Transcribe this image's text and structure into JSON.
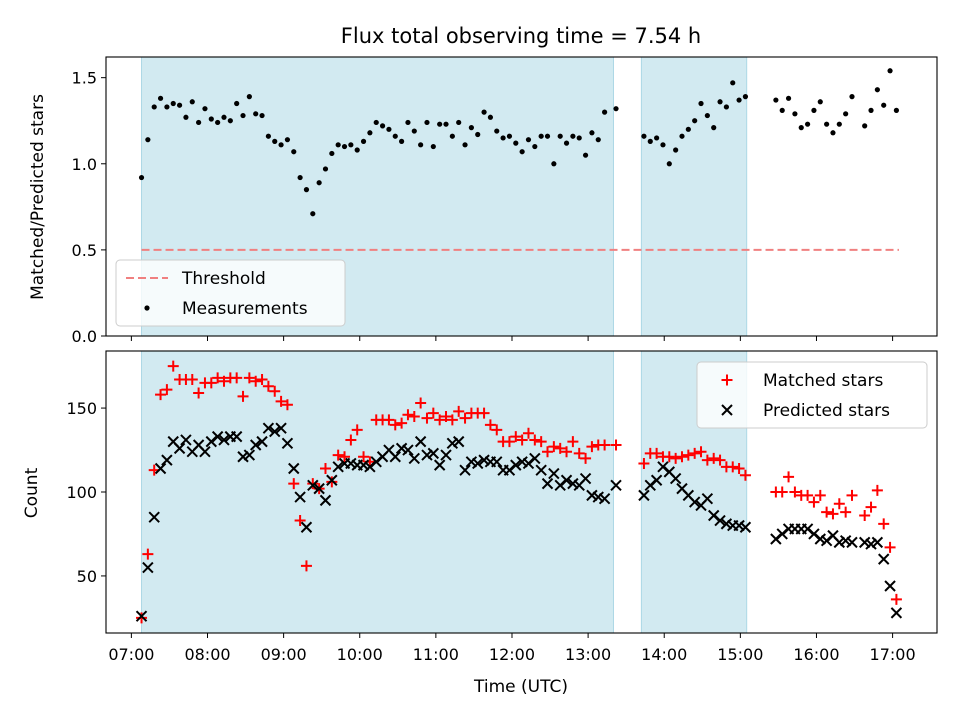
{
  "chart_data": [
    {
      "type": "scatter",
      "title": "Flux total observing time = 7.54 h",
      "xlabel": "",
      "ylabel": "Matched/Predicted stars",
      "xlim": [
        "06:40",
        "17:35"
      ],
      "ylim": [
        0.0,
        1.62
      ],
      "yticks": [
        0.0,
        0.5,
        1.0,
        1.5
      ],
      "ytick_labels": [
        "0.0",
        "0.5",
        "1.0",
        "1.5"
      ],
      "shaded_intervals": [
        [
          "07:08",
          "13:20"
        ],
        [
          "13:42",
          "15:05"
        ]
      ],
      "shade_color": "#add8e6",
      "threshold": {
        "name": "Threshold",
        "value": 0.5,
        "x": [
          "07:08",
          "17:05"
        ],
        "color": "#f08080",
        "style": "dashed"
      },
      "legend": {
        "position": "lower-left",
        "entries": [
          "Threshold",
          "Measurements"
        ]
      },
      "series": [
        {
          "name": "Measurements",
          "color": "#000000",
          "marker": "dot",
          "x": [
            "07:08",
            "07:13",
            "07:18",
            "07:23",
            "07:28",
            "07:33",
            "07:38",
            "07:43",
            "07:48",
            "07:53",
            "07:58",
            "08:03",
            "08:08",
            "08:13",
            "08:18",
            "08:23",
            "08:28",
            "08:33",
            "08:38",
            "08:43",
            "08:48",
            "08:53",
            "08:58",
            "09:03",
            "09:08",
            "09:13",
            "09:18",
            "09:23",
            "09:28",
            "09:33",
            "09:38",
            "09:43",
            "09:48",
            "09:53",
            "09:58",
            "10:03",
            "10:08",
            "10:13",
            "10:18",
            "10:23",
            "10:28",
            "10:33",
            "10:38",
            "10:43",
            "10:48",
            "10:53",
            "10:58",
            "11:03",
            "11:08",
            "11:13",
            "11:18",
            "11:23",
            "11:28",
            "11:33",
            "11:38",
            "11:43",
            "11:48",
            "11:53",
            "11:58",
            "12:03",
            "12:08",
            "12:13",
            "12:18",
            "12:23",
            "12:28",
            "12:33",
            "12:38",
            "12:43",
            "12:48",
            "12:53",
            "12:58",
            "13:03",
            "13:08",
            "13:13",
            "13:22",
            "13:44",
            "13:49",
            "13:54",
            "13:59",
            "14:04",
            "14:09",
            "14:14",
            "14:19",
            "14:24",
            "14:29",
            "14:34",
            "14:39",
            "14:44",
            "14:49",
            "14:54",
            "14:59",
            "15:04",
            "15:28",
            "15:33",
            "15:38",
            "15:43",
            "15:48",
            "15:53",
            "15:58",
            "16:03",
            "16:08",
            "16:13",
            "16:18",
            "16:23",
            "16:28",
            "16:38",
            "16:43",
            "16:48",
            "16:53",
            "16:58",
            "17:03"
          ],
          "y": [
            0.92,
            1.14,
            1.33,
            1.38,
            1.33,
            1.35,
            1.34,
            1.27,
            1.36,
            1.24,
            1.32,
            1.26,
            1.24,
            1.27,
            1.25,
            1.35,
            1.28,
            1.39,
            1.29,
            1.28,
            1.16,
            1.13,
            1.11,
            1.14,
            1.07,
            0.92,
            0.85,
            0.71,
            0.89,
            0.97,
            1.06,
            1.11,
            1.1,
            1.11,
            1.08,
            1.13,
            1.18,
            1.24,
            1.22,
            1.2,
            1.16,
            1.13,
            1.24,
            1.19,
            1.11,
            1.24,
            1.1,
            1.23,
            1.23,
            1.16,
            1.24,
            1.11,
            1.21,
            1.17,
            1.3,
            1.27,
            1.19,
            1.15,
            1.16,
            1.12,
            1.07,
            1.14,
            1.1,
            1.16,
            1.16,
            1.0,
            1.16,
            1.12,
            1.16,
            1.15,
            1.05,
            1.18,
            1.14,
            1.3,
            1.32,
            1.16,
            1.13,
            1.15,
            1.11,
            1.0,
            1.08,
            1.16,
            1.2,
            1.25,
            1.35,
            1.28,
            1.21,
            1.36,
            1.33,
            1.47,
            1.37,
            1.39,
            1.37,
            1.31,
            1.38,
            1.29,
            1.21,
            1.23,
            1.31,
            1.36,
            1.23,
            1.18,
            1.23,
            1.29,
            1.39,
            1.22,
            1.31,
            1.43,
            1.34,
            1.54,
            1.31
          ]
        }
      ]
    },
    {
      "type": "scatter",
      "title": "",
      "xlabel": "Time (UTC)",
      "ylabel": "Count",
      "xlim": [
        "06:40",
        "17:35"
      ],
      "xticks": [
        "07:00",
        "08:00",
        "09:00",
        "10:00",
        "11:00",
        "12:00",
        "13:00",
        "14:00",
        "15:00",
        "16:00",
        "17:00"
      ],
      "ylim": [
        16,
        184
      ],
      "yticks": [
        50,
        100,
        150
      ],
      "ytick_labels": [
        "50",
        "100",
        "150"
      ],
      "shaded_intervals": [
        [
          "07:08",
          "13:20"
        ],
        [
          "13:42",
          "15:05"
        ]
      ],
      "shade_color": "#add8e6",
      "legend": {
        "position": "top-right",
        "entries": [
          "Matched stars",
          "Predicted stars"
        ]
      },
      "series": [
        {
          "name": "Matched stars",
          "color": "#ff0000",
          "marker": "plus",
          "x": [
            "07:08",
            "07:13",
            "07:18",
            "07:23",
            "07:28",
            "07:33",
            "07:38",
            "07:43",
            "07:48",
            "07:53",
            "07:58",
            "08:03",
            "08:08",
            "08:13",
            "08:18",
            "08:23",
            "08:28",
            "08:33",
            "08:38",
            "08:43",
            "08:48",
            "08:53",
            "08:58",
            "09:03",
            "09:08",
            "09:13",
            "09:18",
            "09:23",
            "09:28",
            "09:33",
            "09:38",
            "09:43",
            "09:48",
            "09:53",
            "09:58",
            "10:03",
            "10:08",
            "10:13",
            "10:18",
            "10:23",
            "10:28",
            "10:33",
            "10:38",
            "10:43",
            "10:48",
            "10:53",
            "10:58",
            "11:03",
            "11:08",
            "11:13",
            "11:18",
            "11:23",
            "11:28",
            "11:33",
            "11:38",
            "11:43",
            "11:48",
            "11:53",
            "11:58",
            "12:03",
            "12:08",
            "12:13",
            "12:18",
            "12:23",
            "12:28",
            "12:33",
            "12:38",
            "12:43",
            "12:48",
            "12:53",
            "12:58",
            "13:03",
            "13:08",
            "13:13",
            "13:22",
            "13:44",
            "13:49",
            "13:54",
            "13:59",
            "14:04",
            "14:09",
            "14:14",
            "14:19",
            "14:24",
            "14:29",
            "14:34",
            "14:39",
            "14:44",
            "14:49",
            "14:54",
            "14:59",
            "15:04",
            "15:28",
            "15:33",
            "15:38",
            "15:43",
            "15:48",
            "15:53",
            "15:58",
            "16:03",
            "16:08",
            "16:13",
            "16:18",
            "16:23",
            "16:28",
            "16:38",
            "16:43",
            "16:48",
            "16:53",
            "16:58",
            "17:03"
          ],
          "y": [
            25,
            63,
            113,
            158,
            161,
            175,
            167,
            167,
            167,
            159,
            165,
            165,
            168,
            166,
            168,
            168,
            157,
            168,
            166,
            167,
            163,
            160,
            154,
            152,
            105,
            83,
            56,
            105,
            102,
            114,
            106,
            122,
            121,
            131,
            137,
            121,
            118,
            143,
            143,
            143,
            140,
            141,
            146,
            145,
            153,
            144,
            147,
            143,
            145,
            143,
            148,
            144,
            147,
            147,
            147,
            140,
            137,
            130,
            130,
            133,
            131,
            135,
            131,
            130,
            124,
            127,
            126,
            124,
            130,
            123,
            120,
            127,
            128,
            128,
            128,
            117,
            123,
            123,
            121,
            121,
            120,
            121,
            122,
            123,
            124,
            119,
            120,
            119,
            115,
            115,
            114,
            110,
            100,
            100,
            109,
            100,
            98,
            98,
            94,
            98,
            88,
            87,
            93,
            88,
            98,
            86,
            91,
            101,
            81,
            67,
            36
          ]
        },
        {
          "name": "Predicted stars",
          "color": "#000000",
          "marker": "x",
          "x": [
            "07:08",
            "07:13",
            "07:18",
            "07:23",
            "07:28",
            "07:33",
            "07:38",
            "07:43",
            "07:48",
            "07:53",
            "07:58",
            "08:03",
            "08:08",
            "08:13",
            "08:18",
            "08:23",
            "08:28",
            "08:33",
            "08:38",
            "08:43",
            "08:48",
            "08:53",
            "08:58",
            "09:03",
            "09:08",
            "09:13",
            "09:18",
            "09:23",
            "09:28",
            "09:33",
            "09:38",
            "09:43",
            "09:48",
            "09:53",
            "09:58",
            "10:03",
            "10:08",
            "10:13",
            "10:18",
            "10:23",
            "10:28",
            "10:33",
            "10:38",
            "10:43",
            "10:48",
            "10:53",
            "10:58",
            "11:03",
            "11:08",
            "11:13",
            "11:18",
            "11:23",
            "11:28",
            "11:33",
            "11:38",
            "11:43",
            "11:48",
            "11:53",
            "11:58",
            "12:03",
            "12:08",
            "12:13",
            "12:18",
            "12:23",
            "12:28",
            "12:33",
            "12:38",
            "12:43",
            "12:48",
            "12:53",
            "12:58",
            "13:03",
            "13:08",
            "13:13",
            "13:22",
            "13:44",
            "13:49",
            "13:54",
            "13:59",
            "14:04",
            "14:09",
            "14:14",
            "14:19",
            "14:24",
            "14:29",
            "14:34",
            "14:39",
            "14:44",
            "14:49",
            "14:54",
            "14:59",
            "15:04",
            "15:28",
            "15:33",
            "15:38",
            "15:43",
            "15:48",
            "15:53",
            "15:58",
            "16:03",
            "16:08",
            "16:13",
            "16:18",
            "16:23",
            "16:28",
            "16:38",
            "16:43",
            "16:48",
            "16:53",
            "16:58",
            "17:03"
          ],
          "y": [
            26,
            55,
            85,
            114,
            119,
            130,
            126,
            131,
            124,
            128,
            124,
            130,
            133,
            131,
            133,
            133,
            121,
            122,
            128,
            130,
            138,
            136,
            138,
            129,
            114,
            97,
            79,
            104,
            102,
            95,
            107,
            115,
            117,
            117,
            116,
            116,
            115,
            118,
            121,
            125,
            121,
            126,
            125,
            120,
            130,
            122,
            123,
            116,
            122,
            129,
            130,
            113,
            118,
            117,
            119,
            118,
            118,
            113,
            113,
            116,
            118,
            117,
            120,
            113,
            105,
            111,
            104,
            107,
            105,
            104,
            108,
            98,
            97,
            96,
            104,
            98,
            104,
            107,
            115,
            112,
            108,
            102,
            98,
            94,
            92,
            96,
            86,
            83,
            81,
            80,
            80,
            79,
            72,
            75,
            78,
            78,
            78,
            78,
            75,
            72,
            71,
            74,
            70,
            71,
            70,
            70,
            69,
            70,
            60,
            44,
            28
          ]
        }
      ]
    }
  ]
}
